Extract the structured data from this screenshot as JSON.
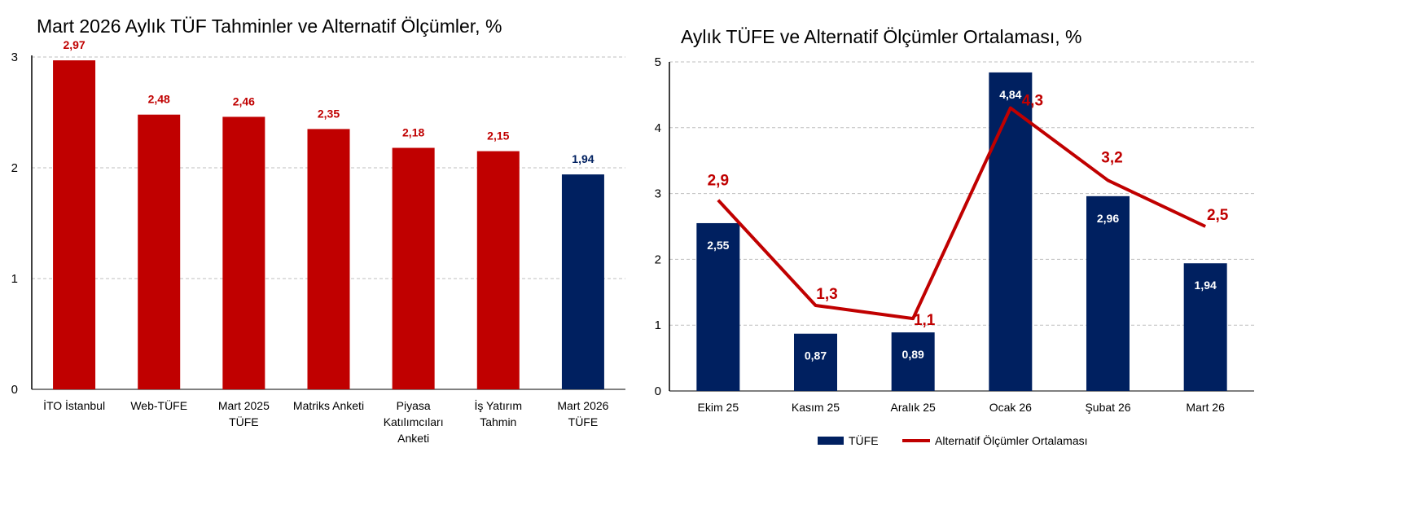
{
  "chart_data": [
    {
      "type": "bar",
      "title": "Mart 2026 Aylık TÜF Tahminler ve Alternatif Ölçümler, %",
      "categories": [
        [
          "İTO İstanbul"
        ],
        [
          "Web-TÜFE"
        ],
        [
          "Mart 2025",
          "TÜFE"
        ],
        [
          "Matriks Anketi"
        ],
        [
          "Piyasa",
          "Katılımcıları",
          "Anketi"
        ],
        [
          "İş Yatırım",
          "Tahmin"
        ],
        [
          "Mart 2026",
          "TÜFE"
        ]
      ],
      "values": [
        2.97,
        2.48,
        2.46,
        2.35,
        2.18,
        2.15,
        1.94
      ],
      "value_labels": [
        "2,97",
        "2,48",
        "2,46",
        "2,35",
        "2,18",
        "2,15",
        "1,94"
      ],
      "bar_colors": [
        "#C00000",
        "#C00000",
        "#C00000",
        "#C00000",
        "#C00000",
        "#C00000",
        "#002060"
      ],
      "yticks": [
        "0",
        "1",
        "2",
        "3"
      ],
      "ylim": [
        0,
        3
      ],
      "grid": true
    },
    {
      "type": "bar+line",
      "title": "Aylık TÜFE ve Alternatif Ölçümler Ortalaması, %",
      "categories": [
        "Ekim 25",
        "Kasım 25",
        "Aralık 25",
        "Ocak 26",
        "Şubat 26",
        "Mart 26"
      ],
      "series": [
        {
          "name": "TÜFE",
          "type": "bar",
          "color": "#002060",
          "values": [
            2.55,
            0.87,
            0.89,
            4.84,
            2.96,
            1.94
          ],
          "labels": [
            "2,55",
            "0,87",
            "0,89",
            "4,84",
            "2,96",
            "1,94"
          ]
        },
        {
          "name": "Alternatif Ölçümler Ortalaması",
          "type": "line",
          "color": "#C00000",
          "values": [
            2.9,
            1.3,
            1.1,
            4.3,
            3.2,
            2.5
          ],
          "labels": [
            "2,9",
            "1,3",
            "1,1",
            "4,3",
            "3,2",
            "2,5"
          ]
        }
      ],
      "yticks": [
        "0",
        "1",
        "2",
        "3",
        "4",
        "5"
      ],
      "ylim": [
        0,
        5
      ],
      "grid": true,
      "legend": "bottom"
    }
  ]
}
